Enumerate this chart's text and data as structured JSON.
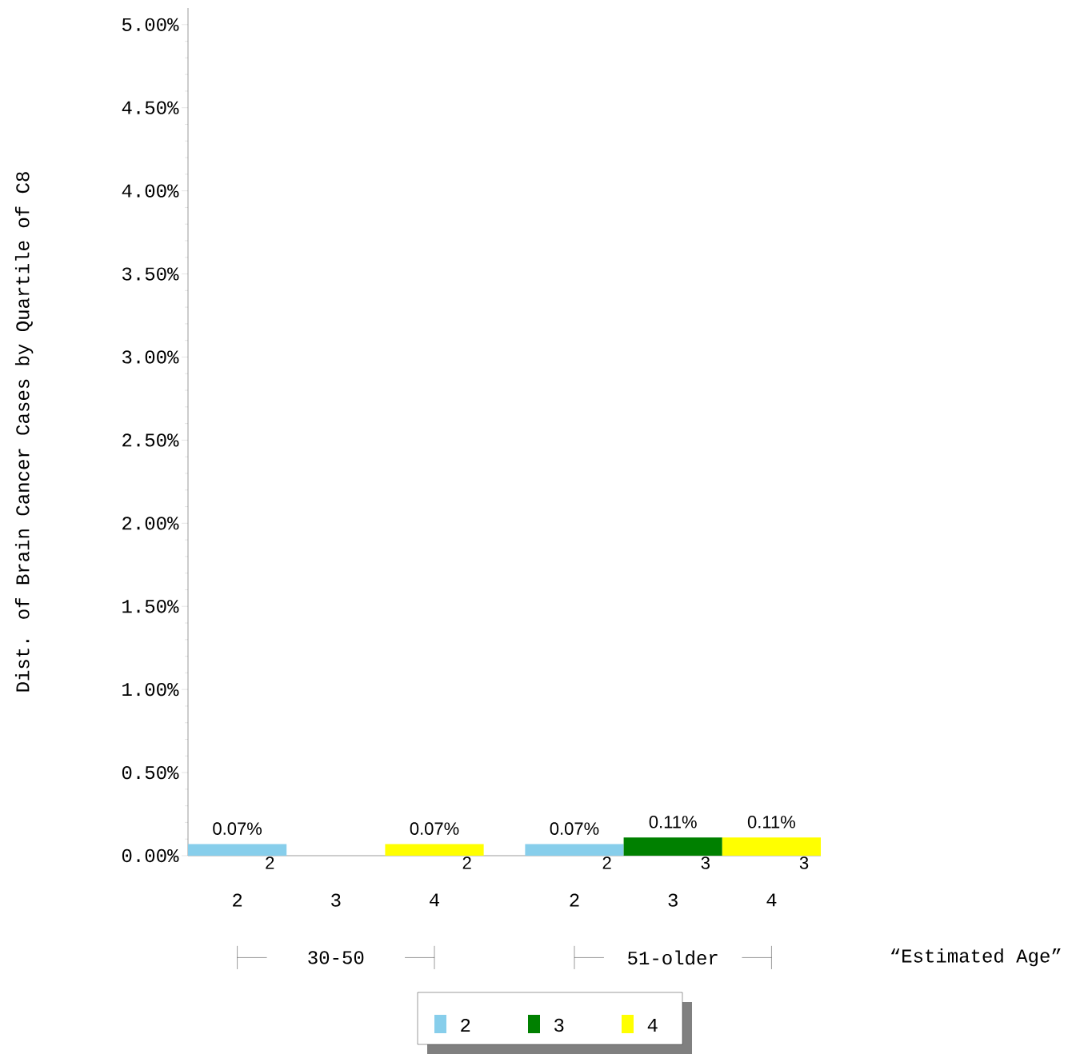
{
  "chart_data": {
    "type": "bar",
    "categories": [
      "2",
      "3",
      "4",
      "2",
      "3",
      "4"
    ],
    "series": [
      {
        "name": "2",
        "color": "#87ceeb",
        "values": [
          0.07,
          null,
          null,
          0.07,
          null,
          null
        ],
        "value_labels": [
          "0.07%",
          null,
          null,
          "0.07%",
          null,
          null
        ]
      },
      {
        "name": "3",
        "color": "#008000",
        "values": [
          null,
          null,
          null,
          null,
          0.11,
          null
        ],
        "value_labels": [
          null,
          null,
          null,
          null,
          "0.11%",
          null
        ]
      },
      {
        "name": "4",
        "color": "#ffff00",
        "values": [
          null,
          null,
          0.07,
          null,
          null,
          0.11
        ],
        "value_labels": [
          null,
          null,
          "0.07%",
          null,
          null,
          "0.11%"
        ]
      }
    ],
    "ylabel": "Dist. of Brain Cancer Cases by Quartile of C8",
    "xlabel": "“Estimated Age”",
    "ylim": [
      0,
      5.1
    ],
    "yticks": [
      {
        "value": 0,
        "label": "0.00%"
      },
      {
        "value": 0.5,
        "label": "0.50%"
      },
      {
        "value": 1,
        "label": "1.00%"
      },
      {
        "value": 1.5,
        "label": "1.50%"
      },
      {
        "value": 2,
        "label": "2.00%"
      },
      {
        "value": 2.5,
        "label": "2.50%"
      },
      {
        "value": 3,
        "label": "3.00%"
      },
      {
        "value": 3.5,
        "label": "3.50%"
      },
      {
        "value": 4,
        "label": "4.00%"
      },
      {
        "value": 4.5,
        "label": "4.50%"
      },
      {
        "value": 5,
        "label": "5.00%"
      }
    ],
    "annotations": [
      "30-50",
      "51-older",
      "2",
      "2",
      "2",
      "3",
      "3"
    ],
    "legend": "bottom"
  }
}
